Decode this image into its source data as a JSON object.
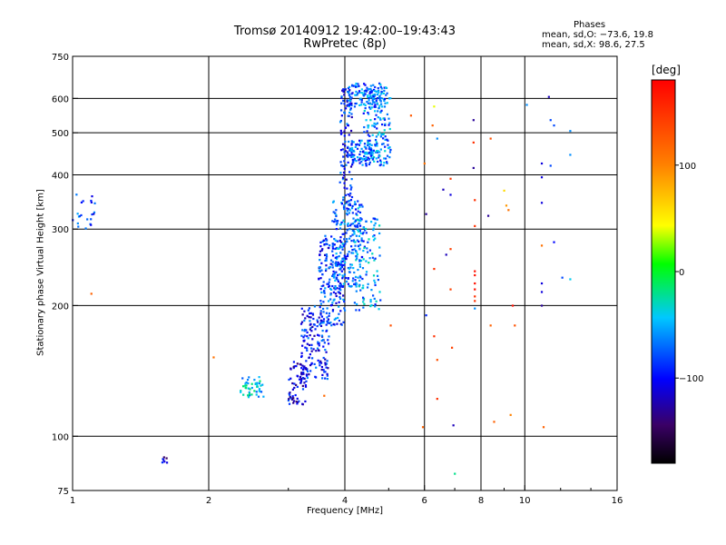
{
  "chart_data": {
    "type": "scatter",
    "title": "Tromsø 20140912 19:42:00–19:43:43",
    "subtitle": "RwPretec (8p)",
    "xlabel": "Frequency [MHz]",
    "ylabel": "Stationary phase Virtual Height [km]",
    "x_scale": "log",
    "y_scale": "log",
    "xlim": [
      1,
      16
    ],
    "ylim": [
      75,
      750
    ],
    "x_ticks": [
      1,
      2,
      4,
      6,
      8,
      10,
      16
    ],
    "x_tick_labels": [
      "1",
      "2",
      "4",
      "6",
      "8",
      "10",
      "16"
    ],
    "x_grid": [
      2,
      4,
      6,
      8,
      10
    ],
    "y_ticks": [
      75,
      100,
      200,
      300,
      400,
      500,
      600,
      750
    ],
    "y_tick_labels": [
      "75",
      "100",
      "200",
      "300",
      "400",
      "500",
      "600",
      "750"
    ],
    "y_grid": [
      100,
      200,
      300,
      400,
      500,
      600
    ],
    "grid": true,
    "colorbar": {
      "label": "[deg]",
      "range": [
        -180,
        180
      ],
      "ticks": [
        100,
        0,
        -100
      ],
      "tick_labels": [
        "100",
        "0",
        "−100"
      ]
    },
    "stats": {
      "header": "Phases",
      "line_o": "mean, sd,O: −73.6, 19.8",
      "line_x": "mean, sd,X:  98.6, 27.5"
    },
    "clusters": [
      {
        "f": [
          1.0,
          1.12
        ],
        "h": [
          295,
          370
        ],
        "phase": -80,
        "count": 22
      },
      {
        "f": [
          1.55,
          1.62
        ],
        "h": [
          86,
          91
        ],
        "phase": -110,
        "count": 7
      },
      {
        "f": [
          2.35,
          2.65
        ],
        "h": [
          123,
          137
        ],
        "phase": -45,
        "count": 45
      },
      {
        "f": [
          3.0,
          3.3
        ],
        "h": [
          118,
          150
        ],
        "phase": -110,
        "count": 70
      },
      {
        "f": [
          3.2,
          3.7
        ],
        "h": [
          135,
          200
        ],
        "phase": -95,
        "count": 150
      },
      {
        "f": [
          3.5,
          4.0
        ],
        "h": [
          180,
          290
        ],
        "phase": -85,
        "count": 180
      },
      {
        "f": [
          3.75,
          4.4
        ],
        "h": [
          220,
          350
        ],
        "phase": -70,
        "count": 220
      },
      {
        "f": [
          4.2,
          4.8
        ],
        "h": [
          195,
          320
        ],
        "phase": -60,
        "count": 100
      },
      {
        "f": [
          3.9,
          4.15
        ],
        "h": [
          330,
          640
        ],
        "phase": -90,
        "count": 120
      },
      {
        "f": [
          4.4,
          5.05
        ],
        "h": [
          420,
          640
        ],
        "phase": -65,
        "count": 160
      },
      {
        "f": [
          4.1,
          4.6
        ],
        "h": [
          420,
          480
        ],
        "phase": -75,
        "count": 90
      },
      {
        "f": [
          4.05,
          4.95
        ],
        "h": [
          570,
          650
        ],
        "phase": -70,
        "count": 100
      }
    ],
    "points": [
      {
        "f": 1.1,
        "h": 213,
        "phase": 120
      },
      {
        "f": 2.05,
        "h": 152,
        "phase": 110
      },
      {
        "f": 3.6,
        "h": 124,
        "phase": 115
      },
      {
        "f": 5.05,
        "h": 180,
        "phase": 130
      },
      {
        "f": 5.6,
        "h": 548,
        "phase": 125
      },
      {
        "f": 5.95,
        "h": 105,
        "phase": 120
      },
      {
        "f": 6.0,
        "h": 425,
        "phase": 110
      },
      {
        "f": 6.05,
        "h": 325,
        "phase": -130
      },
      {
        "f": 6.05,
        "h": 190,
        "phase": -90
      },
      {
        "f": 6.25,
        "h": 520,
        "phase": 120
      },
      {
        "f": 6.3,
        "h": 575,
        "phase": 40
      },
      {
        "f": 6.3,
        "h": 170,
        "phase": 150
      },
      {
        "f": 6.3,
        "h": 243,
        "phase": 150
      },
      {
        "f": 6.4,
        "h": 485,
        "phase": -60
      },
      {
        "f": 6.4,
        "h": 150,
        "phase": 130
      },
      {
        "f": 6.4,
        "h": 122,
        "phase": 150
      },
      {
        "f": 6.6,
        "h": 370,
        "phase": -120
      },
      {
        "f": 6.7,
        "h": 262,
        "phase": -120
      },
      {
        "f": 6.85,
        "h": 392,
        "phase": 145
      },
      {
        "f": 6.85,
        "h": 360,
        "phase": -110
      },
      {
        "f": 6.85,
        "h": 270,
        "phase": 140
      },
      {
        "f": 6.85,
        "h": 218,
        "phase": 140
      },
      {
        "f": 6.9,
        "h": 160,
        "phase": 140
      },
      {
        "f": 6.95,
        "h": 106,
        "phase": -120
      },
      {
        "f": 7.0,
        "h": 82,
        "phase": -20
      },
      {
        "f": 7.7,
        "h": 535,
        "phase": -130
      },
      {
        "f": 7.7,
        "h": 475,
        "phase": 150
      },
      {
        "f": 7.7,
        "h": 415,
        "phase": -130
      },
      {
        "f": 7.75,
        "h": 350,
        "phase": 150
      },
      {
        "f": 7.75,
        "h": 305,
        "phase": 150
      },
      {
        "f": 7.75,
        "h": 240,
        "phase": 170
      },
      {
        "f": 7.75,
        "h": 235,
        "phase": 170
      },
      {
        "f": 7.75,
        "h": 225,
        "phase": 170
      },
      {
        "f": 7.75,
        "h": 218,
        "phase": 170
      },
      {
        "f": 7.75,
        "h": 210,
        "phase": 150
      },
      {
        "f": 7.75,
        "h": 205,
        "phase": 150
      },
      {
        "f": 7.75,
        "h": 197,
        "phase": -60
      },
      {
        "f": 8.4,
        "h": 485,
        "phase": 130
      },
      {
        "f": 8.3,
        "h": 322,
        "phase": -130
      },
      {
        "f": 8.4,
        "h": 180,
        "phase": 120
      },
      {
        "f": 8.55,
        "h": 108,
        "phase": 120
      },
      {
        "f": 9.0,
        "h": 368,
        "phase": 60
      },
      {
        "f": 9.1,
        "h": 340,
        "phase": 90
      },
      {
        "f": 9.2,
        "h": 332,
        "phase": 110
      },
      {
        "f": 9.4,
        "h": 200,
        "phase": 170
      },
      {
        "f": 9.5,
        "h": 180,
        "phase": 130
      },
      {
        "f": 9.3,
        "h": 112,
        "phase": 100
      },
      {
        "f": 10.1,
        "h": 580,
        "phase": -60
      },
      {
        "f": 10.9,
        "h": 425,
        "phase": -110
      },
      {
        "f": 10.9,
        "h": 395,
        "phase": -110
      },
      {
        "f": 10.9,
        "h": 345,
        "phase": -110
      },
      {
        "f": 10.9,
        "h": 275,
        "phase": 110
      },
      {
        "f": 10.9,
        "h": 225,
        "phase": -110
      },
      {
        "f": 10.9,
        "h": 215,
        "phase": -110
      },
      {
        "f": 10.9,
        "h": 200,
        "phase": -130
      },
      {
        "f": 11.0,
        "h": 105,
        "phase": 120
      },
      {
        "f": 11.3,
        "h": 605,
        "phase": -120
      },
      {
        "f": 11.4,
        "h": 535,
        "phase": -80
      },
      {
        "f": 11.4,
        "h": 420,
        "phase": -80
      },
      {
        "f": 11.6,
        "h": 520,
        "phase": -80
      },
      {
        "f": 11.6,
        "h": 280,
        "phase": -100
      },
      {
        "f": 12.1,
        "h": 232,
        "phase": -80
      },
      {
        "f": 12.6,
        "h": 505,
        "phase": -60
      },
      {
        "f": 12.6,
        "h": 445,
        "phase": -60
      },
      {
        "f": 12.6,
        "h": 230,
        "phase": -40
      }
    ]
  }
}
